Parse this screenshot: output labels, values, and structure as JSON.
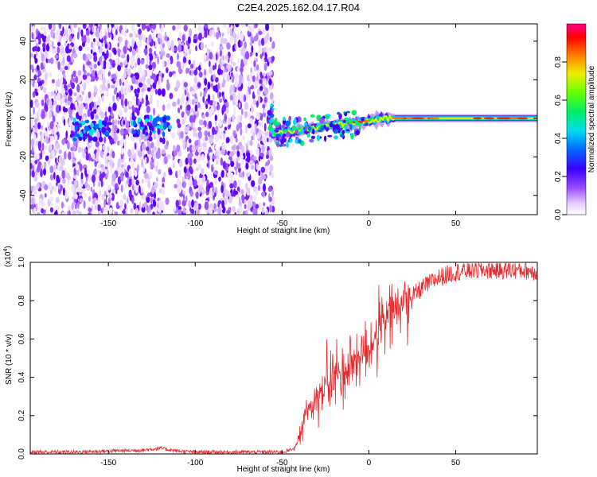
{
  "title": "C2E4.2025.162.04.17.R04",
  "chart_data": [
    {
      "type": "heatmap",
      "xlabel": "Height of straight line (km)",
      "ylabel": "Frequency (Hz)",
      "xlim": [
        -195,
        97
      ],
      "ylim": [
        -50,
        49
      ],
      "xticks": [
        -150,
        -100,
        -50,
        0,
        50
      ],
      "xtick_labels": [
        "-150",
        "-100",
        "-50",
        "0",
        "50"
      ],
      "yticks": [
        -40,
        -20,
        0,
        20,
        40
      ],
      "ytick_labels": [
        "-40",
        "-20",
        "0",
        "20",
        "40"
      ],
      "colorbar": {
        "label": "Normalized spectral amplitude",
        "range": [
          0,
          1
        ],
        "ticks": [
          0.0,
          0.2,
          0.4,
          0.6,
          0.8
        ],
        "tick_labels": [
          "0.0",
          "0.2",
          "0.4",
          "0.6",
          "0.8"
        ]
      },
      "features": [
        {
          "x_range": [
            -195,
            -55
          ],
          "description": "low-amplitude noise across all frequencies"
        },
        {
          "x_range": [
            -55,
            97
          ],
          "frequency_center": 0,
          "description": "coherent narrow band near 0 Hz rising from about -8 Hz at -55 km to 0 Hz, high amplitude"
        }
      ]
    },
    {
      "type": "line",
      "xlabel": "Height of straight line (km)",
      "ylabel": "SNR (10 * v/v)",
      "multiplier_label": "(x10",
      "multiplier_exp": "4",
      "xlim": [
        -195,
        97
      ],
      "ylim": [
        0,
        1.0
      ],
      "xticks": [
        -150,
        -100,
        -50,
        0,
        50
      ],
      "xtick_labels": [
        "-150",
        "-100",
        "-50",
        "0",
        "50"
      ],
      "yticks": [
        0.0,
        0.2,
        0.4,
        0.6,
        0.8,
        1.0
      ],
      "ytick_labels": [
        "0.0",
        "0.2",
        "0.4",
        "0.6",
        "0.8",
        "1.0"
      ],
      "color": "#e8272a",
      "series": [
        {
          "x": [
            -195,
            -170,
            -150,
            -130,
            -120,
            -110,
            -100,
            -80,
            -60,
            -50,
            -45,
            -42,
            -40,
            -38,
            -35,
            -30,
            -25,
            -20,
            -15,
            -10,
            -5,
            0,
            5,
            10,
            15,
            20,
            25,
            30,
            40,
            50,
            60,
            70,
            80,
            90,
            97
          ],
          "y": [
            0.01,
            0.01,
            0.015,
            0.02,
            0.03,
            0.015,
            0.01,
            0.01,
            0.01,
            0.01,
            0.02,
            0.04,
            0.08,
            0.15,
            0.25,
            0.3,
            0.35,
            0.4,
            0.42,
            0.48,
            0.52,
            0.55,
            0.62,
            0.7,
            0.75,
            0.78,
            0.82,
            0.86,
            0.92,
            0.95,
            0.96,
            0.96,
            0.96,
            0.96,
            0.95
          ]
        }
      ]
    }
  ]
}
